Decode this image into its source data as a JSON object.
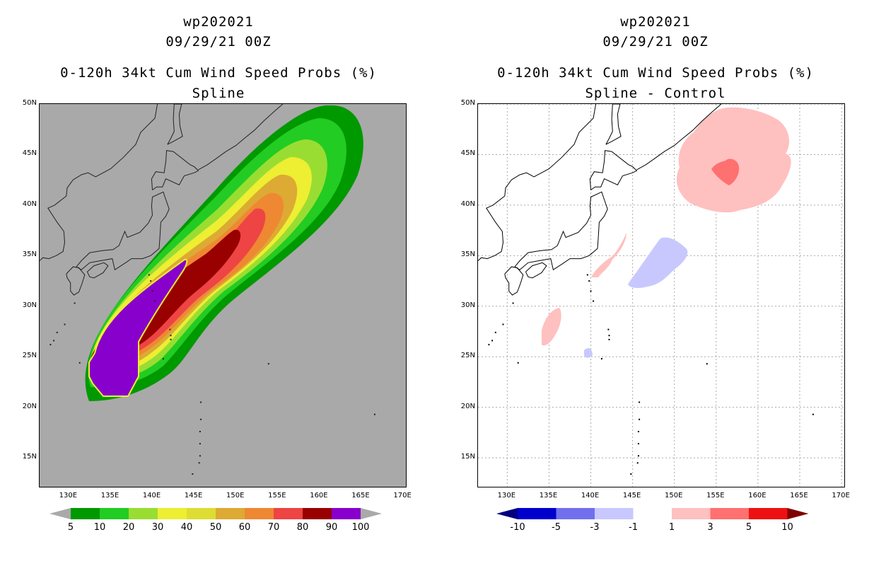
{
  "storm_id": "wp202021",
  "datetime": "09/29/21 00Z",
  "left_panel": {
    "title": "0-120h 34kt Cum Wind Speed Probs (%)",
    "subtitle": "Spline",
    "background_color": "#a9a9a9",
    "colorbar": {
      "labels": [
        "5",
        "10",
        "20",
        "30",
        "40",
        "50",
        "60",
        "70",
        "80",
        "90",
        "100"
      ],
      "colors": [
        "#009900",
        "#22cc22",
        "#99dd33",
        "#eeee33",
        "#dddd33",
        "#ddaa33",
        "#ee8833",
        "#ee4444",
        "#990000",
        "#8800cc"
      ],
      "end_color": "#a9a9a9"
    }
  },
  "right_panel": {
    "title": "0-120h 34kt Cum Wind Speed Probs (%)",
    "subtitle": "Spline - Control",
    "colorbar": {
      "labels": [
        "-10",
        "-5",
        "-3",
        "-1",
        "1",
        "3",
        "5",
        "10"
      ],
      "colors": [
        "#0000cc",
        "#7070ee",
        "#c8c8ff",
        "#ffffff",
        "#ffc0c0",
        "#ff7070",
        "#ee1111"
      ],
      "left_end_color": "#000080",
      "right_end_color": "#800000"
    }
  },
  "axes": {
    "lat_labels": [
      "50N",
      "45N",
      "40N",
      "35N",
      "30N",
      "25N",
      "20N",
      "15N"
    ],
    "lon_labels": [
      "130E",
      "135E",
      "140E",
      "145E",
      "150E",
      "155E",
      "160E",
      "165E",
      "170E"
    ],
    "lat_range": [
      12,
      50
    ],
    "lon_range": [
      126.5,
      170.5
    ]
  }
}
